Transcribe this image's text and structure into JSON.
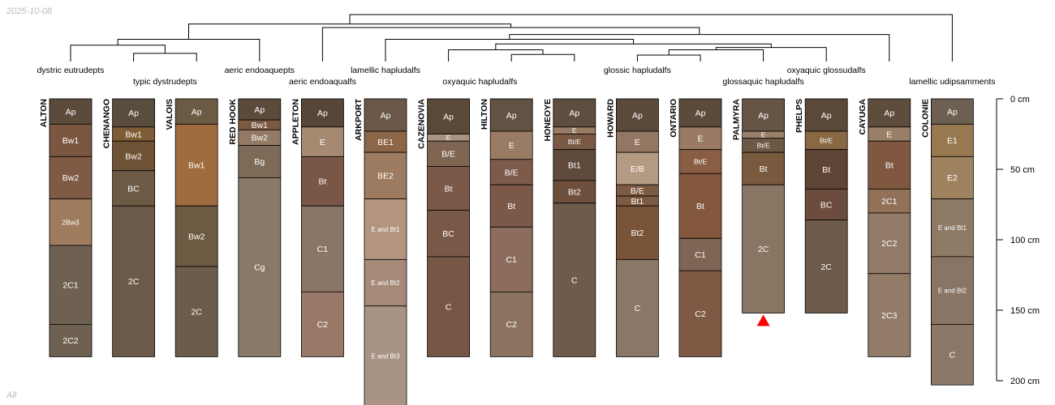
{
  "header": {
    "date": "2025-10-08",
    "subset": "All"
  },
  "depth_axis": {
    "unit": "cm",
    "ticks": [
      {
        "depth": 0,
        "label": "0 cm"
      },
      {
        "depth": 50,
        "label": "50 cm"
      },
      {
        "depth": 100,
        "label": "100 cm"
      },
      {
        "depth": 150,
        "label": "150 cm"
      },
      {
        "depth": 200,
        "label": "200 cm"
      }
    ]
  },
  "dendrogram": {
    "leaf_order": [
      "ALTON",
      "CHENANGO",
      "VALOIS",
      "RED HOOK",
      "APPLETON",
      "ARKPORT",
      "CAZENOVIA",
      "HILTON",
      "HONEOYE",
      "HOWARD",
      "ONTARIO",
      "PALMYRA",
      "PHELPS",
      "CAYUGA",
      "COLONIE"
    ],
    "merges": [
      {
        "a": "L:CHENANGO",
        "b": "L:VALOIS",
        "height": 0.14
      },
      {
        "a": "L:ALTON",
        "b": "M0",
        "height": 0.28
      },
      {
        "a": "L:RED HOOK",
        "b": "M1",
        "height": 0.38
      },
      {
        "a": "L:HILTON",
        "b": "L:HONEOYE",
        "height": 0.12
      },
      {
        "a": "L:CAZENOVIA",
        "b": "M3",
        "height": 0.2
      },
      {
        "a": "L:HOWARD",
        "b": "L:ONTARIO",
        "height": 0.11
      },
      {
        "a": "M5",
        "b": "L:PALMYRA",
        "height": 0.2
      },
      {
        "a": "M6",
        "b": "L:PHELPS",
        "height": 0.24
      },
      {
        "a": "M4",
        "b": "M7",
        "height": 0.3
      },
      {
        "a": "L:ARKPORT",
        "b": "M8",
        "height": 0.38
      },
      {
        "a": "M9",
        "b": "L:CAYUGA",
        "height": 0.46
      },
      {
        "a": "L:APPLETON",
        "b": "M10",
        "height": 0.58
      },
      {
        "a": "M2",
        "b": "M11",
        "height": 0.64
      },
      {
        "a": "M12",
        "b": "L:COLONIE",
        "height": 0.8
      }
    ]
  },
  "groups": [
    {
      "label": "dystric eutrudepts",
      "row": 0,
      "members": [
        "ALTON"
      ]
    },
    {
      "label": "typic dystrudepts",
      "row": 1,
      "members": [
        "CHENANGO",
        "VALOIS"
      ]
    },
    {
      "label": "aeric endoaquepts",
      "row": 0,
      "members": [
        "RED HOOK"
      ]
    },
    {
      "label": "aeric endoaqualfs",
      "row": 1,
      "members": [
        "APPLETON"
      ]
    },
    {
      "label": "lamellic hapludalfs",
      "row": 0,
      "members": [
        "ARKPORT"
      ]
    },
    {
      "label": "oxyaquic hapludalfs",
      "row": 1,
      "members": [
        "CAZENOVIA",
        "HILTON"
      ]
    },
    {
      "label": "glossic hapludalfs",
      "row": 0,
      "members": [
        "HONEOYE",
        "HOWARD",
        "ONTARIO"
      ]
    },
    {
      "label": "glossaquic hapludalfs",
      "row": 1,
      "members": [
        "PALMYRA"
      ]
    },
    {
      "label": "oxyaquic glossudalfs",
      "row": 0,
      "members": [
        "PHELPS"
      ]
    },
    {
      "label": "lamellic udipsamments",
      "row": 1,
      "members": [
        "COLONIE"
      ]
    }
  ],
  "profiles": [
    {
      "name": "ALTON",
      "horizons": [
        {
          "name": "Ap",
          "top": 0,
          "bottom": 18,
          "color": "#5c4a3b"
        },
        {
          "name": "Bw1",
          "top": 18,
          "bottom": 41,
          "color": "#7b5640"
        },
        {
          "name": "Bw2",
          "top": 41,
          "bottom": 71,
          "color": "#7f5a44"
        },
        {
          "name": "2Bw3",
          "top": 71,
          "bottom": 104,
          "color": "#9f7c5e"
        },
        {
          "name": "2C1",
          "top": 104,
          "bottom": 160,
          "color": "#6f6152"
        },
        {
          "name": "2C2",
          "top": 160,
          "bottom": 183,
          "color": "#6f6152"
        }
      ]
    },
    {
      "name": "CHENANGO",
      "horizons": [
        {
          "name": "Ap",
          "top": 0,
          "bottom": 20,
          "color": "#5a4c3e"
        },
        {
          "name": "Bw1",
          "top": 20,
          "bottom": 30,
          "color": "#7e5c35"
        },
        {
          "name": "Bw2",
          "top": 30,
          "bottom": 51,
          "color": "#6e5236"
        },
        {
          "name": "BC",
          "top": 51,
          "bottom": 76,
          "color": "#6d5a44"
        },
        {
          "name": "2C",
          "top": 76,
          "bottom": 183,
          "color": "#6c5a49"
        }
      ]
    },
    {
      "name": "VALOIS",
      "horizons": [
        {
          "name": "Ap",
          "top": 0,
          "bottom": 18,
          "color": "#6b5a44"
        },
        {
          "name": "Bw1",
          "top": 18,
          "bottom": 76,
          "color": "#a06c3f"
        },
        {
          "name": "Bw2",
          "top": 76,
          "bottom": 119,
          "color": "#6e5a42"
        },
        {
          "name": "2C",
          "top": 119,
          "bottom": 183,
          "color": "#6c5c4c"
        }
      ]
    },
    {
      "name": "RED HOOK",
      "horizons": [
        {
          "name": "Ap",
          "top": 0,
          "bottom": 15,
          "color": "#5c4a3b"
        },
        {
          "name": "Bw1",
          "top": 15,
          "bottom": 22,
          "color": "#7b5a42"
        },
        {
          "name": "Bw2",
          "top": 22,
          "bottom": 33,
          "color": "#927a64"
        },
        {
          "name": "Bg",
          "top": 33,
          "bottom": 56,
          "color": "#7d6b58"
        },
        {
          "name": "Cg",
          "top": 56,
          "bottom": 183,
          "color": "#8a7966"
        }
      ]
    },
    {
      "name": "APPLETON",
      "horizons": [
        {
          "name": "Ap",
          "top": 0,
          "bottom": 20,
          "color": "#574537"
        },
        {
          "name": "E",
          "top": 20,
          "bottom": 41,
          "color": "#a58a71"
        },
        {
          "name": "Bt",
          "top": 41,
          "bottom": 76,
          "color": "#7a5646"
        },
        {
          "name": "C1",
          "top": 76,
          "bottom": 137,
          "color": "#8b7565"
        },
        {
          "name": "C2",
          "top": 137,
          "bottom": 183,
          "color": "#9a7868"
        }
      ]
    },
    {
      "name": "ARKPORT",
      "horizons": [
        {
          "name": "Ap",
          "top": 0,
          "bottom": 23,
          "color": "#6b5747"
        },
        {
          "name": "BE1",
          "top": 23,
          "bottom": 38,
          "color": "#8c6648"
        },
        {
          "name": "BE2",
          "top": 38,
          "bottom": 71,
          "color": "#9d7b60"
        },
        {
          "name": "E and Bt1",
          "top": 71,
          "bottom": 114,
          "color": "#b3957f"
        },
        {
          "name": "E and Bt2",
          "top": 114,
          "bottom": 147,
          "color": "#a48a77"
        },
        {
          "name": "E and Bt3",
          "top": 147,
          "bottom": 218,
          "color": "#a89384"
        }
      ]
    },
    {
      "name": "CAZENOVIA",
      "horizons": [
        {
          "name": "Ap",
          "top": 0,
          "bottom": 25,
          "color": "#5a4838"
        },
        {
          "name": "E",
          "top": 25,
          "bottom": 30,
          "color": "#a89480"
        },
        {
          "name": "B/E",
          "top": 30,
          "bottom": 48,
          "color": "#7f6452"
        },
        {
          "name": "Bt",
          "top": 48,
          "bottom": 79,
          "color": "#7c5849"
        },
        {
          "name": "BC",
          "top": 79,
          "bottom": 112,
          "color": "#7a5848"
        },
        {
          "name": "C",
          "top": 112,
          "bottom": 183,
          "color": "#785646"
        }
      ]
    },
    {
      "name": "HILTON",
      "horizons": [
        {
          "name": "Ap",
          "top": 0,
          "bottom": 23,
          "color": "#625244"
        },
        {
          "name": "E",
          "top": 23,
          "bottom": 43,
          "color": "#9a7c65"
        },
        {
          "name": "B/E",
          "top": 43,
          "bottom": 61,
          "color": "#7d5a4a"
        },
        {
          "name": "Bt",
          "top": 61,
          "bottom": 91,
          "color": "#7b5848"
        },
        {
          "name": "C1",
          "top": 91,
          "bottom": 137,
          "color": "#8c6c5c"
        },
        {
          "name": "C2",
          "top": 137,
          "bottom": 183,
          "color": "#8c735f"
        }
      ]
    },
    {
      "name": "HONEOYE",
      "horizons": [
        {
          "name": "Ap",
          "top": 0,
          "bottom": 20,
          "color": "#5e4e40"
        },
        {
          "name": "E",
          "top": 20,
          "bottom": 25,
          "color": "#987b62"
        },
        {
          "name": "Bt/E",
          "top": 25,
          "bottom": 36,
          "color": "#7a5a44"
        },
        {
          "name": "Bt1",
          "top": 36,
          "bottom": 58,
          "color": "#5f4a3b"
        },
        {
          "name": "Bt2",
          "top": 58,
          "bottom": 74,
          "color": "#6e4f3c"
        },
        {
          "name": "C",
          "top": 74,
          "bottom": 183,
          "color": "#6f5b4b"
        }
      ]
    },
    {
      "name": "HOWARD",
      "horizons": [
        {
          "name": "Ap",
          "top": 0,
          "bottom": 23,
          "color": "#5c4a3b"
        },
        {
          "name": "E",
          "top": 23,
          "bottom": 38,
          "color": "#937762"
        },
        {
          "name": "E/B",
          "top": 38,
          "bottom": 61,
          "color": "#b39a83"
        },
        {
          "name": "B/E",
          "top": 61,
          "bottom": 69,
          "color": "#7d5a42"
        },
        {
          "name": "Bt1",
          "top": 69,
          "bottom": 76,
          "color": "#7d5a42"
        },
        {
          "name": "Bt2",
          "top": 76,
          "bottom": 114,
          "color": "#7a5438"
        },
        {
          "name": "C",
          "top": 114,
          "bottom": 183,
          "color": "#8a7766"
        }
      ]
    },
    {
      "name": "ONTARIO",
      "horizons": [
        {
          "name": "Ap",
          "top": 0,
          "bottom": 20,
          "color": "#5c4a3b"
        },
        {
          "name": "E",
          "top": 20,
          "bottom": 36,
          "color": "#9a7a64"
        },
        {
          "name": "Bt/E",
          "top": 36,
          "bottom": 53,
          "color": "#8a5e44"
        },
        {
          "name": "Bt",
          "top": 53,
          "bottom": 99,
          "color": "#83583f"
        },
        {
          "name": "C1",
          "top": 99,
          "bottom": 122,
          "color": "#7f6553"
        },
        {
          "name": "C2",
          "top": 122,
          "bottom": 183,
          "color": "#7e5a45"
        }
      ]
    },
    {
      "name": "PALMYRA",
      "horizons": [
        {
          "name": "Ap",
          "top": 0,
          "bottom": 23,
          "color": "#665444"
        },
        {
          "name": "E",
          "top": 23,
          "bottom": 28,
          "color": "#9a8068"
        },
        {
          "name": "Bt/E",
          "top": 28,
          "bottom": 38,
          "color": "#6e5844"
        },
        {
          "name": "Bt",
          "top": 38,
          "bottom": 61,
          "color": "#7a5a3e"
        },
        {
          "name": "2C",
          "top": 61,
          "bottom": 152,
          "color": "#8a7563"
        }
      ]
    },
    {
      "name": "PHELPS",
      "horizons": [
        {
          "name": "Ap",
          "top": 0,
          "bottom": 23,
          "color": "#5a4838"
        },
        {
          "name": "Bt/E",
          "top": 23,
          "bottom": 36,
          "color": "#8a6844"
        },
        {
          "name": "Bt",
          "top": 36,
          "bottom": 64,
          "color": "#5e4434"
        },
        {
          "name": "BC",
          "top": 64,
          "bottom": 86,
          "color": "#6c4c3c"
        },
        {
          "name": "2C",
          "top": 86,
          "bottom": 152,
          "color": "#6e5a4a"
        }
      ]
    },
    {
      "name": "CAYUGA",
      "horizons": [
        {
          "name": "Ap",
          "top": 0,
          "bottom": 20,
          "color": "#5e4c3c"
        },
        {
          "name": "E",
          "top": 20,
          "bottom": 30,
          "color": "#9a7f68"
        },
        {
          "name": "Bt",
          "top": 30,
          "bottom": 64,
          "color": "#80583f"
        },
        {
          "name": "2C1",
          "top": 64,
          "bottom": 81,
          "color": "#927158"
        },
        {
          "name": "2C2",
          "top": 81,
          "bottom": 124,
          "color": "#927a66"
        },
        {
          "name": "2C3",
          "top": 124,
          "bottom": 183,
          "color": "#927c68"
        }
      ]
    },
    {
      "name": "COLONIE",
      "horizons": [
        {
          "name": "Ap",
          "top": 0,
          "bottom": 18,
          "color": "#6d5f52"
        },
        {
          "name": "E1",
          "top": 18,
          "bottom": 41,
          "color": "#987850"
        },
        {
          "name": "E2",
          "top": 41,
          "bottom": 71,
          "color": "#9f8360"
        },
        {
          "name": "E and Bt1",
          "top": 71,
          "bottom": 112,
          "color": "#8f7a66"
        },
        {
          "name": "E and Bt2",
          "top": 112,
          "bottom": 160,
          "color": "#8a7565"
        },
        {
          "name": "C",
          "top": 160,
          "bottom": 203,
          "color": "#8c7868"
        }
      ]
    }
  ],
  "markers": [
    {
      "profile": "PALMYRA",
      "type": "triangle",
      "color": "#ff0000"
    }
  ]
}
